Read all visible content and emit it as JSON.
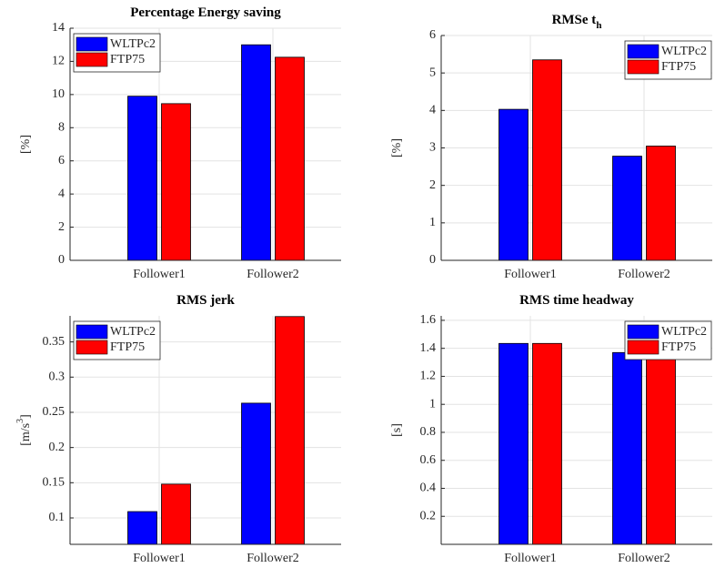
{
  "chart_data": [
    {
      "type": "bar",
      "title": "Percentage Energy saving",
      "ylabel": "[%]",
      "categories": [
        "Follower1",
        "Follower2"
      ],
      "series": [
        {
          "name": "WLTPc2",
          "color": "#0000ff",
          "values": [
            9.9,
            13.0
          ]
        },
        {
          "name": "FTP75",
          "color": "#ff0000",
          "values": [
            9.45,
            12.25
          ]
        }
      ],
      "ylim": [
        0,
        14
      ],
      "yticks": [
        0,
        2,
        4,
        6,
        8,
        10,
        12,
        14
      ],
      "grid": true,
      "legend": "upper left"
    },
    {
      "type": "bar",
      "title": "RMSe t",
      "title_sub": "h",
      "ylabel": "[%]",
      "categories": [
        "Follower1",
        "Follower2"
      ],
      "series": [
        {
          "name": "WLTPc2",
          "color": "#0000ff",
          "values": [
            4.03,
            2.78
          ]
        },
        {
          "name": "FTP75",
          "color": "#ff0000",
          "values": [
            5.35,
            3.05
          ]
        }
      ],
      "ylim": [
        0,
        6
      ],
      "yticks": [
        0,
        1,
        2,
        3,
        4,
        5,
        6
      ],
      "grid": true,
      "legend": "upper right"
    },
    {
      "type": "bar",
      "title": "RMS jerk",
      "ylabel": "[m/s",
      "ylabel_sup": "3",
      "ylabel_end": "]",
      "categories": [
        "Follower1",
        "Follower2"
      ],
      "series": [
        {
          "name": "WLTPc2",
          "color": "#0000ff",
          "values": [
            0.109,
            0.263
          ]
        },
        {
          "name": "FTP75",
          "color": "#ff0000",
          "values": [
            0.148,
            0.386
          ]
        }
      ],
      "ylim": [
        0.0625,
        0.387
      ],
      "yticks": [
        0.1,
        0.15,
        0.2,
        0.25,
        0.3,
        0.35
      ],
      "grid": true,
      "legend": "upper left"
    },
    {
      "type": "bar",
      "title": "RMS time headway",
      "ylabel": "[s]",
      "categories": [
        "Follower1",
        "Follower2"
      ],
      "series": [
        {
          "name": "WLTPc2",
          "color": "#0000ff",
          "values": [
            1.435,
            1.37
          ]
        },
        {
          "name": "FTP75",
          "color": "#ff0000",
          "values": [
            1.435,
            1.37
          ]
        }
      ],
      "ylim": [
        0,
        1.632
      ],
      "yticks": [
        0.2,
        0.4,
        0.6,
        0.8,
        1,
        1.2,
        1.4,
        1.6
      ],
      "grid": true,
      "legend": "upper right"
    }
  ]
}
